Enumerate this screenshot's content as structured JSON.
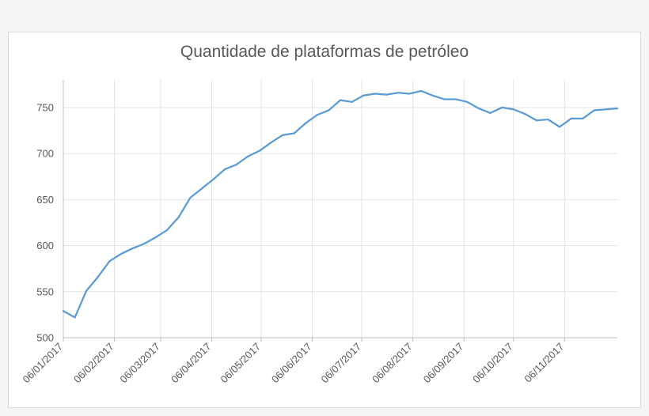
{
  "chart_data": {
    "type": "line",
    "title": "Quantidade de plataformas de petróleo",
    "xlabel": "",
    "ylabel": "",
    "x_tick_labels": [
      "06/01/2017",
      "06/02/2017",
      "06/03/2017",
      "06/04/2017",
      "06/05/2017",
      "06/06/2017",
      "06/07/2017",
      "06/08/2017",
      "06/09/2017",
      "06/10/2017",
      "06/11/2017"
    ],
    "y_ticks": [
      500,
      550,
      600,
      650,
      700,
      750
    ],
    "ylim": [
      500,
      780
    ],
    "xlim": [
      "2017-01-06",
      "2017-12-08"
    ],
    "grid": true,
    "legend": "none",
    "series_color": "#5b9bd5",
    "series": [
      {
        "x": [
          "2017-01-06",
          "2017-01-13",
          "2017-01-20",
          "2017-01-27",
          "2017-02-03",
          "2017-02-10",
          "2017-02-17",
          "2017-02-24",
          "2017-03-03",
          "2017-03-10",
          "2017-03-17",
          "2017-03-24",
          "2017-03-31",
          "2017-04-07",
          "2017-04-14",
          "2017-04-21",
          "2017-04-28",
          "2017-05-05",
          "2017-05-12",
          "2017-05-19",
          "2017-05-26",
          "2017-06-02",
          "2017-06-09",
          "2017-06-16",
          "2017-06-23",
          "2017-06-30",
          "2017-07-07",
          "2017-07-14",
          "2017-07-21",
          "2017-07-28",
          "2017-08-04",
          "2017-08-11",
          "2017-08-18",
          "2017-08-25",
          "2017-09-01",
          "2017-09-08",
          "2017-09-15",
          "2017-09-22",
          "2017-09-29",
          "2017-10-06",
          "2017-10-13",
          "2017-10-20",
          "2017-10-27",
          "2017-11-03",
          "2017-11-10",
          "2017-11-17",
          "2017-11-24",
          "2017-12-01",
          "2017-12-08"
        ],
        "values": [
          529,
          522,
          551,
          566,
          583,
          591,
          597,
          602,
          609,
          617,
          631,
          652,
          662,
          672,
          683,
          688,
          697,
          703,
          712,
          720,
          722,
          733,
          742,
          747,
          758,
          756,
          763,
          765,
          764,
          766,
          765,
          768,
          763,
          759,
          759,
          756,
          749,
          744,
          750,
          748,
          743,
          736,
          737,
          729,
          738,
          738,
          747,
          748,
          749
        ]
      }
    ]
  }
}
